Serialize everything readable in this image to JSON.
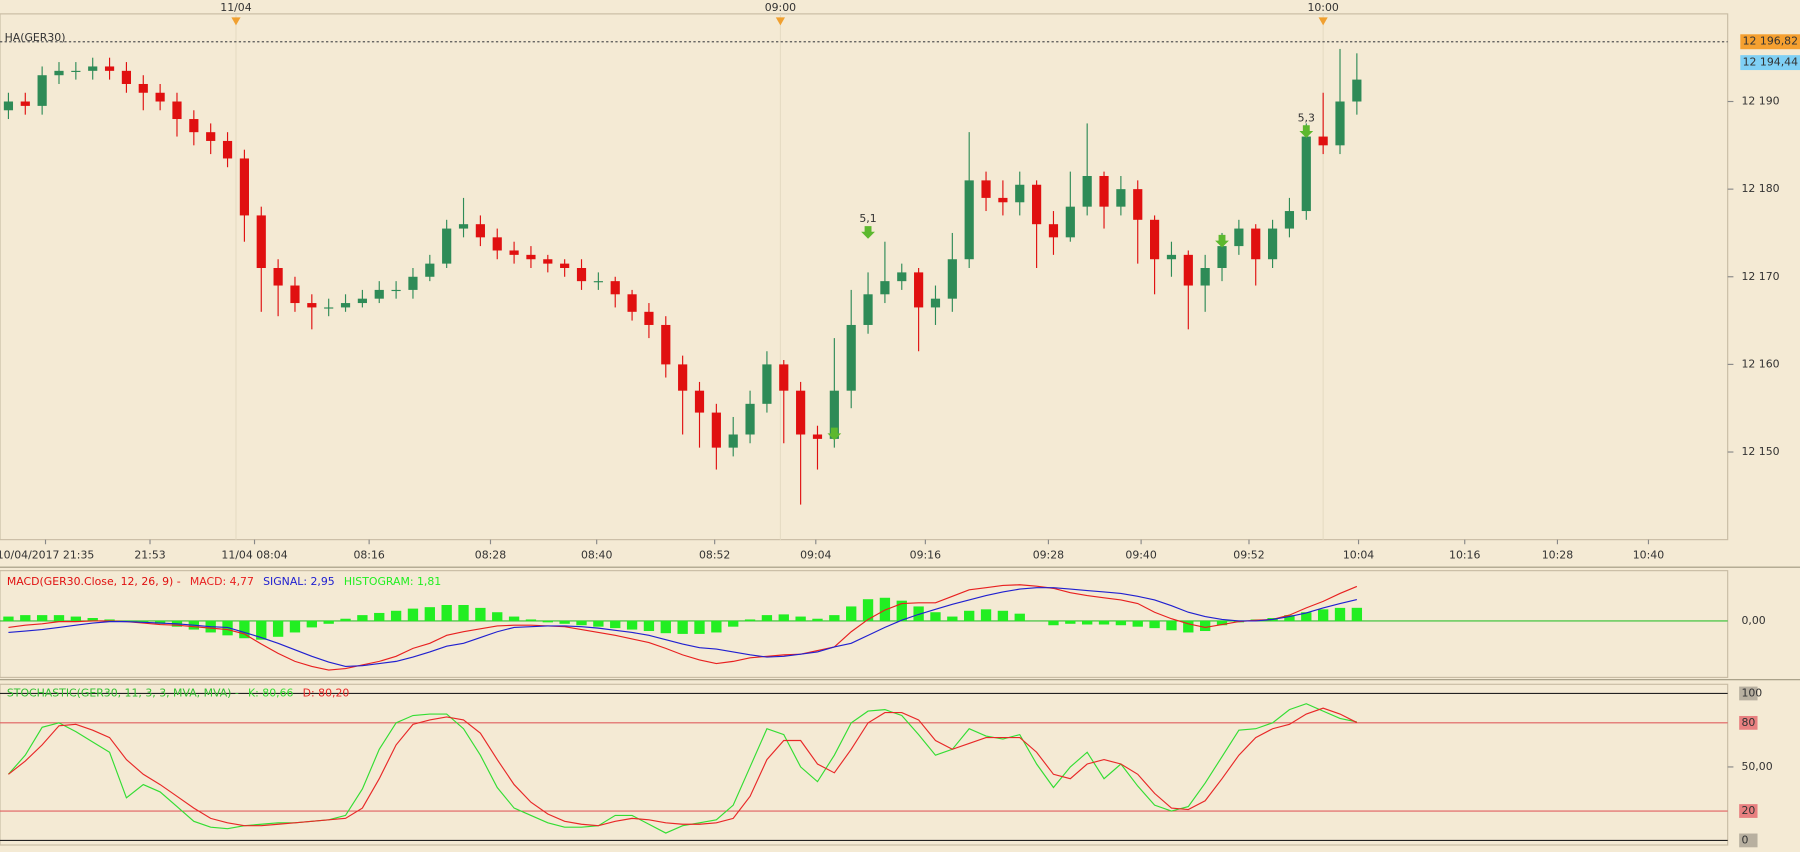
{
  "chart_data": [
    {
      "type": "candlestick",
      "legend": "HA(GER30)",
      "up_color": "#2e8b57",
      "down_color": "#e01010",
      "open": [
        12189,
        12190,
        12189.5,
        12193,
        12193.5,
        12193.5,
        12194,
        12193.5,
        12192,
        12191,
        12190,
        12188,
        12186.5,
        12185.5,
        12183.5,
        12177,
        12171,
        12169,
        12167,
        12166.5,
        12166.5,
        12167,
        12167.5,
        12168.5,
        12168.5,
        12170,
        12171.5,
        12175.5,
        12176,
        12174.5,
        12173,
        12172.5,
        12172,
        12171.5,
        12171,
        12169.5,
        12169.5,
        12168,
        12166,
        12164.5,
        12160,
        12157,
        12154.5,
        12150.5,
        12152,
        12155.5,
        12160,
        12157,
        12152,
        12151.5,
        12157,
        12164.5,
        12168,
        12169.5,
        12170.5,
        12166.5,
        12167.5,
        12172,
        12181,
        12179,
        12178.5,
        12180.5,
        12176,
        12174.5,
        12178,
        12181.5,
        12178,
        12180,
        12176.5,
        12172,
        12172.5,
        12169,
        12171,
        12173.5,
        12175.5,
        12172,
        12175.5,
        12177.5,
        12186,
        12185,
        12190
      ],
      "high": [
        12191,
        12191,
        12194,
        12194.5,
        12194.5,
        12195,
        12195,
        12194.5,
        12193,
        12192,
        12191,
        12189,
        12187.5,
        12186.5,
        12184.5,
        12178,
        12172,
        12170,
        12168,
        12167.5,
        12168,
        12168.5,
        12169.5,
        12169.5,
        12171,
        12172.5,
        12176.5,
        12179,
        12177,
        12175.5,
        12174,
        12173.5,
        12172.5,
        12172,
        12172,
        12170.5,
        12170,
        12168.5,
        12167,
        12165.5,
        12161,
        12158,
        12155.5,
        12154,
        12157,
        12161.5,
        12160.5,
        12158,
        12153,
        12163,
        12168.5,
        12170.5,
        12174,
        12171.5,
        12171,
        12169,
        12175,
        12186.5,
        12182,
        12181,
        12182,
        12181,
        12177.5,
        12182,
        12187.5,
        12182,
        12181.5,
        12181,
        12177,
        12174,
        12173,
        12172.5,
        12175,
        12176.5,
        12176,
        12176.5,
        12179,
        12187.5,
        12191,
        12196,
        12195.5
      ],
      "low": [
        12188,
        12188.5,
        12188.5,
        12192,
        12192.5,
        12192.5,
        12192.5,
        12191,
        12189,
        12189,
        12186,
        12185,
        12184,
        12182.5,
        12174,
        12166,
        12165.5,
        12166,
        12164,
        12165.5,
        12166,
        12166.5,
        12167,
        12167.5,
        12167.5,
        12169.5,
        12171,
        12174.5,
        12173.5,
        12172,
        12171.5,
        12171,
        12170.5,
        12170,
        12168.5,
        12168.5,
        12166.5,
        12165,
        12163,
        12158.5,
        12152,
        12150.5,
        12148,
        12149.5,
        12151,
        12154.5,
        12151,
        12144,
        12148,
        12150.5,
        12155,
        12163.5,
        12167,
        12168.5,
        12161.5,
        12164.5,
        12166,
        12171,
        12177.5,
        12177,
        12177,
        12171,
        12172.5,
        12174,
        12177,
        12175.5,
        12177,
        12171.5,
        12168,
        12170,
        12164,
        12166,
        12169.5,
        12172.5,
        12169,
        12171,
        12174.5,
        12176.5,
        12184,
        12184,
        12188.5
      ],
      "close": [
        12190,
        12189.5,
        12193,
        12193.5,
        12193.5,
        12194,
        12193.5,
        12192,
        12191,
        12190,
        12188,
        12186.5,
        12185.5,
        12183.5,
        12177,
        12171,
        12169,
        12167,
        12166.5,
        12166.5,
        12167,
        12167.5,
        12168.5,
        12168.5,
        12170,
        12171.5,
        12175.5,
        12176,
        12174.5,
        12173,
        12172.5,
        12172,
        12171.5,
        12171,
        12169.5,
        12169.5,
        12168,
        12166,
        12164.5,
        12160,
        12157,
        12154.5,
        12150.5,
        12152,
        12155.5,
        12160,
        12157,
        12152,
        12151.5,
        12157,
        12164.5,
        12168,
        12169.5,
        12170.5,
        12166.5,
        12167.5,
        12172,
        12181,
        12179,
        12178.5,
        12180.5,
        12176,
        12174.5,
        12178,
        12181.5,
        12178,
        12180,
        12176.5,
        12172,
        12172.5,
        12169,
        12171,
        12173.5,
        12175.5,
        12172,
        12175.5,
        12177.5,
        12186,
        12185,
        12190,
        12192.5
      ],
      "xlim": [
        -0.5,
        102
      ],
      "xticks": [
        {
          "value": 2.2,
          "label": "10/04/2017 21:35"
        },
        {
          "value": 8.4,
          "label": "21:53"
        },
        {
          "value": 14.6,
          "label": "11/04 08:04"
        },
        {
          "value": 21.4,
          "label": "08:16"
        },
        {
          "value": 28.6,
          "label": "08:28"
        },
        {
          "value": 34.9,
          "label": "08:40"
        },
        {
          "value": 41.9,
          "label": "08:52"
        },
        {
          "value": 47.9,
          "label": "09:04"
        },
        {
          "value": 54.4,
          "label": "09:16"
        },
        {
          "value": 61.7,
          "label": "09:28"
        },
        {
          "value": 67.2,
          "label": "09:40"
        },
        {
          "value": 73.6,
          "label": "09:52"
        },
        {
          "value": 80.1,
          "label": "10:04"
        },
        {
          "value": 86.4,
          "label": "10:16"
        },
        {
          "value": 91.9,
          "label": "10:28"
        },
        {
          "value": 97.3,
          "label": "10:40"
        }
      ],
      "top_markers": [
        {
          "value": 13.5,
          "label": "11/04"
        },
        {
          "value": 45.8,
          "label": "09:00"
        },
        {
          "value": 78,
          "label": "10:00"
        }
      ],
      "marker_color": "#f0a030",
      "ylim": [
        12140,
        12200
      ],
      "yticks": [
        {
          "value": 12150,
          "label": "12 150"
        },
        {
          "value": 12160,
          "label": "12 160"
        },
        {
          "value": 12170,
          "label": "12 170"
        },
        {
          "value": 12180,
          "label": "12 180"
        },
        {
          "value": 12190,
          "label": "12 190"
        }
      ],
      "reference_line": {
        "value": 12196.82,
        "label": "12 196,82",
        "color": "#f5a030"
      },
      "last_price": {
        "value": 12194.44,
        "label": "12 194,44",
        "color": "#7fd0f5"
      },
      "signal_color": "#5cb82e",
      "signals": [
        {
          "x": 49,
          "y": 12152
        },
        {
          "x": 51,
          "y": 12175,
          "label": "5,1"
        },
        {
          "x": 72,
          "y": 12174
        },
        {
          "x": 77,
          "y": 12186.5,
          "label": "5,3"
        }
      ]
    },
    {
      "type": "macd",
      "title": "MACD(GER30.Close, 12, 26, 9) -",
      "title_color": "#e01010",
      "ylim": [
        -7.5,
        6
      ],
      "yticks": [
        {
          "value": 0,
          "label": "0,00"
        }
      ],
      "zero_color": "#30c030",
      "series": [
        {
          "label": "MACD: 4,77",
          "color": "#e82020",
          "style": "line",
          "values": [
            -0.9,
            -0.6,
            -0.4,
            -0.1,
            -0.1,
            0,
            0,
            -0.1,
            -0.3,
            -0.5,
            -0.6,
            -0.8,
            -1.0,
            -1.2,
            -1.8,
            -3.2,
            -4.5,
            -5.6,
            -6.3,
            -6.8,
            -6.6,
            -6.1,
            -5.6,
            -4.9,
            -3.8,
            -3.1,
            -2.0,
            -1.5,
            -1.1,
            -0.7,
            -0.6,
            -0.6,
            -0.7,
            -0.8,
            -1.2,
            -1.6,
            -2.0,
            -2.5,
            -3.0,
            -3.8,
            -4.7,
            -5.4,
            -5.9,
            -5.6,
            -5.1,
            -4.9,
            -4.7,
            -4.6,
            -4.1,
            -3.6,
            -1.5,
            0.2,
            1.5,
            2.4,
            2.5,
            2.5,
            3.4,
            4.3,
            4.6,
            4.9,
            5.0,
            4.8,
            4.5,
            3.9,
            3.5,
            3.2,
            2.9,
            2.4,
            1.2,
            0.3,
            -0.4,
            -0.9,
            -0.5,
            -0.1,
            0.1,
            0.2,
            0.8,
            1.8,
            2.7,
            3.8,
            4.77
          ]
        },
        {
          "label": "SIGNAL: 2,95",
          "color": "#2020d0",
          "style": "line",
          "values": [
            -1.6,
            -1.4,
            -1.2,
            -0.9,
            -0.6,
            -0.3,
            -0.1,
            -0.1,
            -0.2,
            -0.3,
            -0.4,
            -0.6,
            -0.8,
            -0.9,
            -1.6,
            -2.3,
            -3.1,
            -4.0,
            -4.9,
            -5.7,
            -6.3,
            -6.2,
            -5.9,
            -5.6,
            -5.0,
            -4.3,
            -3.5,
            -3.1,
            -2.3,
            -1.5,
            -0.9,
            -0.8,
            -0.7,
            -0.7,
            -0.8,
            -1.0,
            -1.3,
            -1.6,
            -2.0,
            -2.6,
            -3.2,
            -3.7,
            -3.9,
            -4.3,
            -4.7,
            -5.0,
            -4.9,
            -4.6,
            -4.3,
            -3.6,
            -3.1,
            -2.0,
            -0.9,
            0.1,
            0.9,
            1.6,
            2.3,
            2.9,
            3.5,
            4.0,
            4.4,
            4.6,
            4.6,
            4.4,
            4.2,
            4.0,
            3.8,
            3.4,
            2.9,
            2.1,
            1.2,
            0.6,
            0.2,
            0,
            0,
            0.2,
            0.6,
            1.1,
            1.8,
            2.4,
            2.95
          ]
        },
        {
          "label": "HISTOGRAM: 1,81",
          "color": "#22ee22",
          "style": "bar",
          "values": [
            0.6,
            0.8,
            0.8,
            0.8,
            0.6,
            0.4,
            0.2,
            0,
            -0.2,
            -0.4,
            -0.8,
            -1.2,
            -1.6,
            -2.0,
            -2.4,
            -2.6,
            -2.2,
            -1.6,
            -0.9,
            -0.4,
            0.3,
            0.8,
            1.1,
            1.4,
            1.7,
            1.9,
            2.2,
            2.2,
            1.8,
            1.2,
            0.6,
            0.2,
            -0.2,
            -0.4,
            -0.6,
            -0.8,
            -1.0,
            -1.2,
            -1.4,
            -1.7,
            -1.8,
            -1.8,
            -1.6,
            -0.8,
            0.2,
            0.8,
            0.9,
            0.6,
            0.3,
            0.8,
            2.0,
            3.0,
            3.2,
            2.8,
            2.0,
            1.2,
            0.6,
            1.4,
            1.6,
            1.4,
            1.0,
            0,
            -0.6,
            -0.4,
            -0.5,
            -0.5,
            -0.6,
            -0.8,
            -1.0,
            -1.3,
            -1.6,
            -1.4,
            -0.6,
            -0.2,
            0.2,
            0.4,
            0.8,
            1.2,
            1.6,
            1.8,
            1.81
          ]
        }
      ]
    },
    {
      "type": "stochastic",
      "title": "STOCHASTIC(GER30, 11, 3, 3, MVA, MVA) -",
      "title_color": "#30c030",
      "ylim": [
        0,
        100
      ],
      "yticks": [
        0,
        20,
        {
          "value": 50,
          "label": "50,00"
        },
        80,
        100
      ],
      "level_color": "#e06060",
      "bound_color": "#222222",
      "series": [
        {
          "label": "K: 80,66",
          "color": "#33dd33",
          "values": [
            45,
            58,
            77,
            80,
            74,
            67,
            60,
            29,
            38,
            33,
            23,
            13,
            9,
            8,
            10,
            11,
            12,
            12,
            13,
            14,
            17,
            35,
            62,
            80,
            85,
            86,
            86,
            76,
            58,
            36,
            22,
            17,
            12,
            9,
            9,
            10,
            17,
            17,
            11,
            5,
            10,
            12,
            14,
            24,
            50,
            76,
            72,
            50,
            40,
            58,
            80,
            88,
            89,
            85,
            72,
            58,
            62,
            76,
            71,
            69,
            72,
            52,
            36,
            50,
            60,
            42,
            52,
            37,
            24,
            20,
            23,
            39,
            57,
            75,
            76,
            80,
            89,
            93,
            88,
            83,
            80.66
          ]
        },
        {
          "label": "D: 80,20",
          "color": "#e82828",
          "values": [
            45,
            54,
            65,
            78,
            79,
            75,
            70,
            55,
            45,
            38,
            30,
            22,
            15,
            12,
            10,
            10,
            11,
            12,
            13,
            14,
            15,
            22,
            42,
            65,
            79,
            82,
            84,
            82,
            73,
            55,
            38,
            26,
            18,
            13,
            11,
            10,
            13,
            15,
            14,
            12,
            11,
            11,
            12,
            15,
            30,
            55,
            68,
            68,
            52,
            46,
            62,
            80,
            87,
            87,
            82,
            68,
            62,
            66,
            70,
            70,
            70,
            60,
            45,
            42,
            52,
            55,
            52,
            45,
            32,
            22,
            21,
            27,
            42,
            58,
            70,
            76,
            79,
            86,
            90,
            86,
            80.2
          ]
        }
      ]
    }
  ]
}
